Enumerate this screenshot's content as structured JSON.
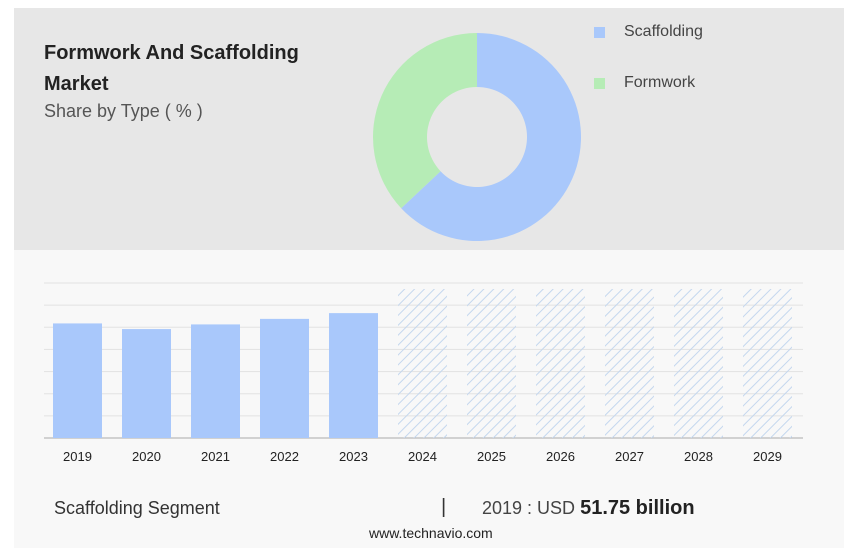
{
  "header": {
    "title": "Formwork And Scaffolding Market",
    "subtitle": "Share by Type ( % )"
  },
  "legend": [
    {
      "name": "Scaffolding",
      "color": "#a9c8fb"
    },
    {
      "name": "Formwork",
      "color": "#b6ecb6"
    }
  ],
  "footer": {
    "segment": "Scaffolding Segment",
    "separator": "|",
    "year_label": "2019 : USD",
    "value_label": "51.75 billion",
    "website": "www.technavio.com"
  },
  "chart_data": [
    {
      "type": "pie",
      "donut": true,
      "slices": [
        {
          "name": "Scaffolding",
          "value": 63,
          "color": "#a9c8fb"
        },
        {
          "name": "Formwork",
          "value": 37,
          "color": "#b6ecb6"
        }
      ]
    },
    {
      "type": "bar",
      "categories": [
        "2019",
        "2020",
        "2021",
        "2022",
        "2023",
        "2024",
        "2025",
        "2026",
        "2027",
        "2028",
        "2029"
      ],
      "values": [
        51.75,
        49.2,
        51.3,
        53.8,
        56.4,
        null,
        null,
        null,
        null,
        null,
        null
      ],
      "forecast": [
        false,
        false,
        false,
        false,
        false,
        true,
        true,
        true,
        true,
        true,
        true
      ],
      "ylim": [
        0,
        70
      ],
      "grid": true,
      "bar_color": "#a9c8fb",
      "forecast_color": "#c4d7ee"
    }
  ]
}
